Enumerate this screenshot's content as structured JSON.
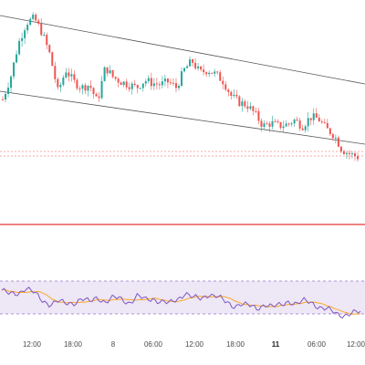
{
  "chart_data": {
    "type": "candlestick",
    "title": "",
    "colors": {
      "up": "#26a69a",
      "down": "#ef5350",
      "channel_lines": "#555555",
      "horizontal_level": "#e53935",
      "dotted_levels": "#ef5350",
      "rsi_line": "#7e57c2",
      "rsi_band": "#ede7f6",
      "rsi_ma": "#f9a825"
    },
    "drawings": [
      "descending parallel channel",
      "horizontal support line",
      "dotted price level lines"
    ],
    "indicator": {
      "name": "RSI",
      "pane": "bottom",
      "band": "overbought/oversold shaded",
      "has_signal_line": true
    },
    "x_axis": {
      "tick_labels": [
        "12:00",
        "18:00",
        "8",
        "06:00",
        "12:00",
        "18:00",
        "11",
        "06:00",
        "12:00"
      ],
      "bold_labels": [
        "11"
      ]
    },
    "price_path": [
      40,
      55,
      78,
      92,
      95,
      85,
      70,
      45,
      60,
      52,
      48,
      50,
      38,
      62,
      55,
      52,
      50,
      48,
      53,
      51,
      50,
      52,
      48,
      60,
      66,
      58,
      60,
      57,
      52,
      42,
      38,
      36,
      30,
      22,
      24,
      22,
      23,
      26,
      22,
      28,
      27,
      20,
      16,
      6,
      3,
      1
    ],
    "rsi_path": [
      68,
      58,
      62,
      74,
      62,
      48,
      42,
      46,
      40,
      44,
      52,
      43,
      54,
      46,
      52,
      50,
      44,
      56,
      48,
      52,
      46,
      40,
      50,
      64,
      52,
      50,
      62,
      56,
      44,
      38,
      42,
      36,
      32,
      42,
      34,
      38,
      48,
      40,
      46,
      44,
      34,
      28,
      22,
      20,
      22,
      24
    ]
  }
}
